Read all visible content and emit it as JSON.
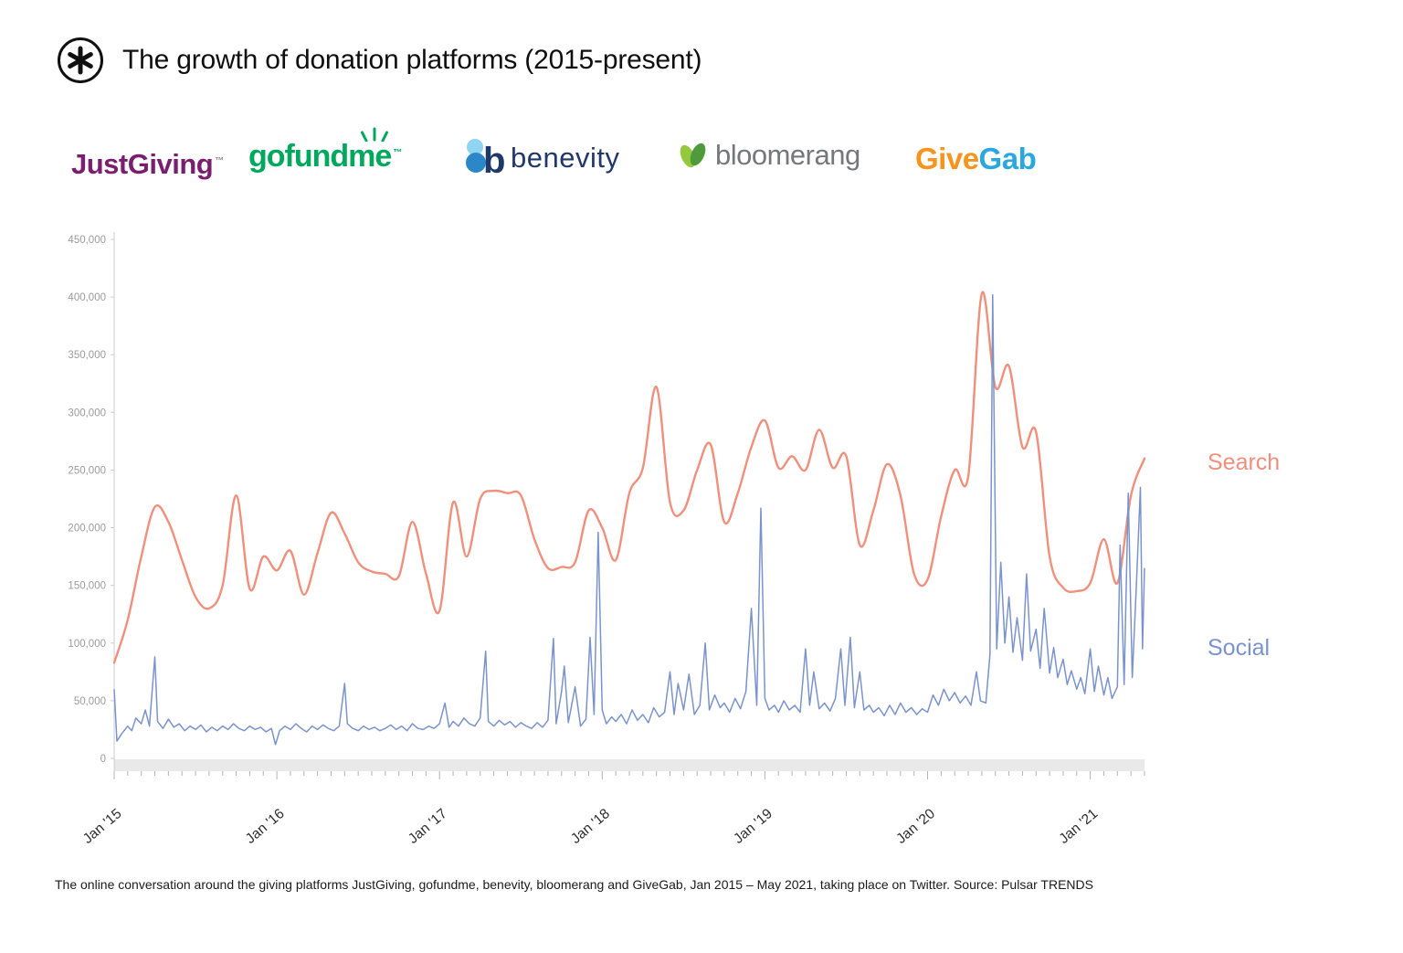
{
  "header": {
    "title": "The growth of donation platforms (2015-present)",
    "logo_icon": "pulsar-asterisk-logo"
  },
  "platform_logos": [
    {
      "name": "JustGiving",
      "text": "JustGiving",
      "tm": "™",
      "color": "#7a1f70"
    },
    {
      "name": "gofundme",
      "text": "gofundme",
      "tm": "™",
      "color": "#00a85e",
      "icon": "sprout-icon"
    },
    {
      "name": "benevity",
      "text": "benevity",
      "icon_letter": "b",
      "color": "#21386b",
      "icon": "flower-icon"
    },
    {
      "name": "bloomerang",
      "text": "bloomerang",
      "color": "#76777b",
      "icon": "leaves-icon"
    },
    {
      "name": "GiveGab",
      "text_give": "Give",
      "text_gab": "Gab",
      "color_give": "#f7941e",
      "color_gab": "#2aa7df"
    }
  ],
  "chart_data": {
    "type": "line",
    "title": "",
    "x_start": "Jan 2015",
    "x_end": "May 2021",
    "x_axis": {
      "unit": "months since Jan 2015",
      "months": 77,
      "minor_ticks": "monthly",
      "major_tick_positions": [
        0,
        12,
        24,
        36,
        48,
        60,
        72
      ],
      "major_tick_labels": [
        "Jan '15",
        "Jan '16",
        "Jan '17",
        "Jan '18",
        "Jan '19",
        "Jan '20",
        "Jan '21"
      ]
    },
    "y_axis": {
      "min": 0,
      "max": 450000,
      "tick_interval": 50000,
      "tick_labels": [
        "0",
        "50,000",
        "100,000",
        "150,000",
        "200,000",
        "250,000",
        "300,000",
        "350,000",
        "400,000",
        "450,000"
      ]
    },
    "grid": "off",
    "legend_position": "right-of-plot",
    "series": [
      {
        "name": "Search",
        "color": "#f0907c",
        "sampling": "monthly",
        "values": [
          83000,
          120000,
          175000,
          218000,
          205000,
          172000,
          140000,
          130000,
          150000,
          228000,
          147000,
          175000,
          163000,
          180000,
          142000,
          178000,
          213000,
          195000,
          170000,
          162000,
          160000,
          158000,
          205000,
          160000,
          128000,
          222000,
          175000,
          225000,
          232000,
          230000,
          228000,
          190000,
          165000,
          166000,
          170000,
          215000,
          200000,
          172000,
          230000,
          252000,
          322000,
          222000,
          215000,
          250000,
          272000,
          205000,
          230000,
          270000,
          293000,
          252000,
          262000,
          250000,
          285000,
          252000,
          262000,
          185000,
          215000,
          255000,
          228000,
          160000,
          155000,
          210000,
          250000,
          245000,
          403000,
          322000,
          340000,
          270000,
          283000,
          175000,
          148000,
          145000,
          152000,
          190000,
          152000,
          228000,
          260000
        ]
      },
      {
        "name": "Social",
        "color": "#7b93cc",
        "sampling": "irregular [month_offset, value]",
        "points": [
          [
            0,
            60000
          ],
          [
            0.2,
            15000
          ],
          [
            0.6,
            22000
          ],
          [
            1,
            28000
          ],
          [
            1.3,
            24000
          ],
          [
            1.6,
            35000
          ],
          [
            2,
            30000
          ],
          [
            2.3,
            42000
          ],
          [
            2.6,
            28000
          ],
          [
            3,
            88000
          ],
          [
            3.2,
            32000
          ],
          [
            3.6,
            26000
          ],
          [
            4,
            34000
          ],
          [
            4.4,
            27000
          ],
          [
            4.8,
            30000
          ],
          [
            5.2,
            24000
          ],
          [
            5.6,
            28000
          ],
          [
            6,
            25000
          ],
          [
            6.4,
            29000
          ],
          [
            6.8,
            23000
          ],
          [
            7.2,
            27000
          ],
          [
            7.6,
            24000
          ],
          [
            8,
            28000
          ],
          [
            8.4,
            25000
          ],
          [
            8.8,
            30000
          ],
          [
            9.2,
            26000
          ],
          [
            9.6,
            24000
          ],
          [
            10,
            28000
          ],
          [
            10.4,
            25000
          ],
          [
            10.8,
            27000
          ],
          [
            11.2,
            23000
          ],
          [
            11.6,
            26000
          ],
          [
            11.9,
            12000
          ],
          [
            12.2,
            24000
          ],
          [
            12.6,
            28000
          ],
          [
            13,
            25000
          ],
          [
            13.4,
            30000
          ],
          [
            13.8,
            26000
          ],
          [
            14.2,
            23000
          ],
          [
            14.6,
            28000
          ],
          [
            15,
            25000
          ],
          [
            15.4,
            29000
          ],
          [
            15.8,
            26000
          ],
          [
            16.2,
            24000
          ],
          [
            16.6,
            28000
          ],
          [
            17,
            65000
          ],
          [
            17.2,
            30000
          ],
          [
            17.6,
            26000
          ],
          [
            18,
            24000
          ],
          [
            18.4,
            28000
          ],
          [
            18.8,
            25000
          ],
          [
            19.2,
            27000
          ],
          [
            19.6,
            24000
          ],
          [
            20,
            26000
          ],
          [
            20.4,
            29000
          ],
          [
            20.8,
            25000
          ],
          [
            21.2,
            28000
          ],
          [
            21.6,
            24000
          ],
          [
            22,
            30000
          ],
          [
            22.4,
            26000
          ],
          [
            22.8,
            25000
          ],
          [
            23.2,
            28000
          ],
          [
            23.6,
            26000
          ],
          [
            24,
            30000
          ],
          [
            24.4,
            48000
          ],
          [
            24.7,
            27000
          ],
          [
            25,
            32000
          ],
          [
            25.4,
            28000
          ],
          [
            25.8,
            35000
          ],
          [
            26.2,
            30000
          ],
          [
            26.6,
            28000
          ],
          [
            27,
            35000
          ],
          [
            27.4,
            93000
          ],
          [
            27.6,
            32000
          ],
          [
            28,
            28000
          ],
          [
            28.4,
            33000
          ],
          [
            28.8,
            29000
          ],
          [
            29.2,
            32000
          ],
          [
            29.6,
            27000
          ],
          [
            30,
            31000
          ],
          [
            30.4,
            28000
          ],
          [
            30.8,
            26000
          ],
          [
            31.2,
            31000
          ],
          [
            31.6,
            27000
          ],
          [
            32,
            33000
          ],
          [
            32.4,
            104000
          ],
          [
            32.6,
            30000
          ],
          [
            33,
            58000
          ],
          [
            33.2,
            80000
          ],
          [
            33.5,
            31000
          ],
          [
            34,
            62000
          ],
          [
            34.4,
            28000
          ],
          [
            34.8,
            34000
          ],
          [
            35.1,
            105000
          ],
          [
            35.4,
            38000
          ],
          [
            35.7,
            196000
          ],
          [
            36,
            42000
          ],
          [
            36.3,
            30000
          ],
          [
            36.7,
            36000
          ],
          [
            37,
            32000
          ],
          [
            37.4,
            38000
          ],
          [
            37.8,
            30000
          ],
          [
            38.2,
            42000
          ],
          [
            38.6,
            33000
          ],
          [
            39,
            38000
          ],
          [
            39.4,
            31000
          ],
          [
            39.8,
            44000
          ],
          [
            40.2,
            36000
          ],
          [
            40.6,
            40000
          ],
          [
            41,
            75000
          ],
          [
            41.3,
            38000
          ],
          [
            41.6,
            65000
          ],
          [
            42,
            42000
          ],
          [
            42.4,
            73000
          ],
          [
            42.8,
            38000
          ],
          [
            43.2,
            46000
          ],
          [
            43.6,
            100000
          ],
          [
            43.9,
            42000
          ],
          [
            44.3,
            55000
          ],
          [
            44.7,
            44000
          ],
          [
            45,
            48000
          ],
          [
            45.4,
            40000
          ],
          [
            45.8,
            52000
          ],
          [
            46.2,
            43000
          ],
          [
            46.6,
            58000
          ],
          [
            47,
            130000
          ],
          [
            47.4,
            46000
          ],
          [
            47.7,
            217000
          ],
          [
            48,
            52000
          ],
          [
            48.3,
            42000
          ],
          [
            48.7,
            46000
          ],
          [
            49,
            40000
          ],
          [
            49.4,
            50000
          ],
          [
            49.8,
            42000
          ],
          [
            50.2,
            46000
          ],
          [
            50.6,
            40000
          ],
          [
            51,
            95000
          ],
          [
            51.3,
            46000
          ],
          [
            51.6,
            75000
          ],
          [
            52,
            43000
          ],
          [
            52.4,
            48000
          ],
          [
            52.8,
            41000
          ],
          [
            53.2,
            52000
          ],
          [
            53.6,
            95000
          ],
          [
            53.9,
            46000
          ],
          [
            54.3,
            105000
          ],
          [
            54.6,
            44000
          ],
          [
            55,
            75000
          ],
          [
            55.3,
            42000
          ],
          [
            55.7,
            46000
          ],
          [
            56,
            40000
          ],
          [
            56.4,
            44000
          ],
          [
            56.8,
            37000
          ],
          [
            57.2,
            46000
          ],
          [
            57.6,
            38000
          ],
          [
            58,
            48000
          ],
          [
            58.4,
            40000
          ],
          [
            58.8,
            44000
          ],
          [
            59.2,
            38000
          ],
          [
            59.6,
            43000
          ],
          [
            60,
            40000
          ],
          [
            60.4,
            55000
          ],
          [
            60.8,
            46000
          ],
          [
            61.2,
            60000
          ],
          [
            61.6,
            50000
          ],
          [
            62,
            57000
          ],
          [
            62.4,
            48000
          ],
          [
            62.8,
            54000
          ],
          [
            63.2,
            46000
          ],
          [
            63.6,
            75000
          ],
          [
            63.9,
            50000
          ],
          [
            64.3,
            48000
          ],
          [
            64.6,
            90000
          ],
          [
            64.8,
            402000
          ],
          [
            65.1,
            95000
          ],
          [
            65.4,
            170000
          ],
          [
            65.7,
            100000
          ],
          [
            66,
            140000
          ],
          [
            66.3,
            92000
          ],
          [
            66.6,
            122000
          ],
          [
            67,
            85000
          ],
          [
            67.3,
            160000
          ],
          [
            67.6,
            93000
          ],
          [
            68,
            112000
          ],
          [
            68.3,
            78000
          ],
          [
            68.6,
            130000
          ],
          [
            69,
            74000
          ],
          [
            69.3,
            96000
          ],
          [
            69.6,
            70000
          ],
          [
            70,
            86000
          ],
          [
            70.3,
            64000
          ],
          [
            70.6,
            76000
          ],
          [
            71,
            60000
          ],
          [
            71.3,
            70000
          ],
          [
            71.6,
            56000
          ],
          [
            72,
            95000
          ],
          [
            72.3,
            58000
          ],
          [
            72.6,
            80000
          ],
          [
            73,
            55000
          ],
          [
            73.3,
            70000
          ],
          [
            73.6,
            52000
          ],
          [
            74,
            62000
          ],
          [
            74.2,
            185000
          ],
          [
            74.5,
            64000
          ],
          [
            74.8,
            230000
          ],
          [
            75.1,
            70000
          ],
          [
            75.4,
            150000
          ],
          [
            75.7,
            235000
          ],
          [
            75.85,
            95000
          ],
          [
            76,
            165000
          ]
        ]
      }
    ]
  },
  "caption": {
    "text": "The online conversation around the giving platforms JustGiving, gofundme, benevity, bloomerang and GiveGab, Jan 2015 – May 2021, taking place on Twitter. Source: Pulsar TRENDS"
  }
}
